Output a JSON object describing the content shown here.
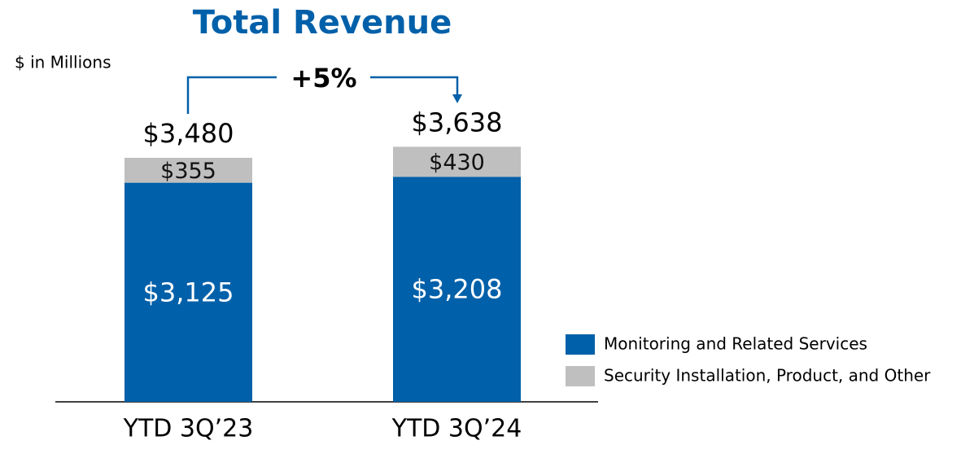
{
  "chart_data": {
    "type": "stacked_bar",
    "title": "Total Revenue",
    "subtitle": "$ in Millions",
    "annotation": "+5%",
    "categories": [
      "YTD 3Q’23",
      "YTD 3Q’24"
    ],
    "series": [
      {
        "name": "Monitoring and Related Services",
        "color": "#0060a9",
        "values": [
          3125,
          3208
        ],
        "value_labels": [
          "$3,125",
          "$3,208"
        ]
      },
      {
        "name": "Security Installation, Product, and Other",
        "color": "#bfbfbf",
        "values": [
          355,
          430
        ],
        "value_labels": [
          "$355",
          "$430"
        ]
      }
    ],
    "totals": [
      3480,
      3638
    ],
    "total_labels": [
      "$3,480",
      "$3,638"
    ]
  }
}
